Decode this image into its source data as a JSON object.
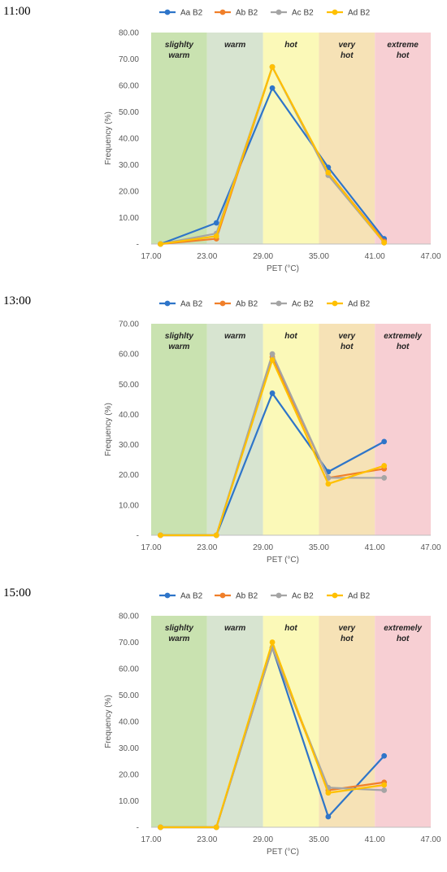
{
  "panels": [
    {
      "time": "11:00",
      "zones": [
        "slighlty warm",
        "warm",
        "hot",
        "very hot",
        "extreme hot"
      ],
      "ylim": [
        0,
        80
      ],
      "yticks": [
        "-",
        "10.00",
        "20.00",
        "30.00",
        "40.00",
        "50.00",
        "60.00",
        "70.00",
        "80.00"
      ]
    },
    {
      "time": "13:00",
      "zones": [
        "slighlty warm",
        "warm",
        "hot",
        "very hot",
        "extremely hot"
      ],
      "ylim": [
        0,
        70
      ],
      "yticks": [
        "-",
        "10.00",
        "20.00",
        "30.00",
        "40.00",
        "50.00",
        "60.00",
        "70.00"
      ]
    },
    {
      "time": "15:00",
      "zones": [
        "slighlty warm",
        "warm",
        "hot",
        "very hot",
        "extremely hot"
      ],
      "ylim": [
        0,
        80
      ],
      "yticks": [
        "-",
        "10.00",
        "20.00",
        "30.00",
        "40.00",
        "50.00",
        "60.00",
        "70.00",
        "80.00"
      ]
    }
  ],
  "xticks": [
    "17.00",
    "23.00",
    "29.00",
    "35.00",
    "41.00",
    "47.00"
  ],
  "xlabel": "PET (°C)",
  "ylabel": "Frequency (%)",
  "colors": {
    "Aa B2": "#2e75c9",
    "Ab B2": "#f07f2a",
    "Ac B2": "#a5a5a5",
    "Ad B2": "#ffc000",
    "zone_fills": [
      "#c9e2b0",
      "#d7e4d0",
      "#fbf9b8",
      "#f6e2b6",
      "#f7cfd3"
    ]
  },
  "chart_data": [
    {
      "type": "line",
      "x": [
        18,
        24,
        30,
        36,
        42
      ],
      "xlim": [
        17,
        47
      ],
      "ylim": [
        0,
        80
      ],
      "grid": false,
      "legend": "top",
      "series": [
        {
          "name": "Aa B2",
          "values": [
            0,
            8,
            59,
            29,
            2
          ]
        },
        {
          "name": "Ab B2",
          "values": [
            0,
            2,
            67,
            27,
            1
          ]
        },
        {
          "name": "Ac B2",
          "values": [
            0,
            4,
            67,
            26,
            0.5
          ]
        },
        {
          "name": "Ad B2",
          "values": [
            0,
            3,
            67,
            27,
            0.5
          ]
        }
      ]
    },
    {
      "type": "line",
      "x": [
        18,
        24,
        30,
        36,
        42
      ],
      "xlim": [
        17,
        47
      ],
      "ylim": [
        0,
        70
      ],
      "grid": false,
      "legend": "top",
      "series": [
        {
          "name": "Aa B2",
          "values": [
            0,
            0,
            47,
            21,
            31
          ]
        },
        {
          "name": "Ab B2",
          "values": [
            0,
            0,
            59,
            19,
            22
          ]
        },
        {
          "name": "Ac B2",
          "values": [
            0,
            0,
            60,
            19,
            19
          ]
        },
        {
          "name": "Ad B2",
          "values": [
            0,
            0,
            58,
            17,
            23
          ]
        }
      ]
    },
    {
      "type": "line",
      "x": [
        18,
        24,
        30,
        36,
        42
      ],
      "xlim": [
        17,
        47
      ],
      "ylim": [
        0,
        80
      ],
      "grid": false,
      "legend": "top",
      "series": [
        {
          "name": "Aa B2",
          "values": [
            0,
            0,
            68,
            4,
            27
          ]
        },
        {
          "name": "Ab B2",
          "values": [
            0,
            0,
            68,
            14,
            17
          ]
        },
        {
          "name": "Ac B2",
          "values": [
            0,
            0,
            68,
            15,
            14
          ]
        },
        {
          "name": "Ad B2",
          "values": [
            0,
            0,
            70,
            13,
            16
          ]
        }
      ]
    }
  ]
}
